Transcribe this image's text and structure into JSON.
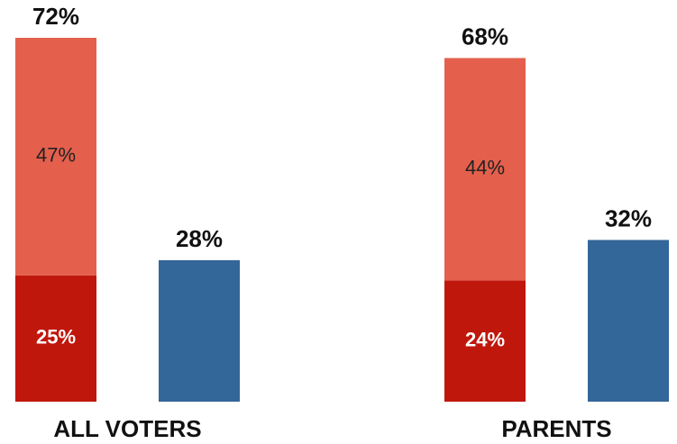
{
  "chart_data": {
    "type": "grouped-stacked-bar",
    "categories": [
      "ALL VOTERS",
      "PARENTS"
    ],
    "series": [
      {
        "color": "#c0170c",
        "values": [
          25,
          24
        ],
        "value_labels": [
          "25%",
          "24%"
        ],
        "stack": 0,
        "label_color": "#ffffff",
        "label_bold": true
      },
      {
        "color": "#e4604c",
        "values": [
          47,
          44
        ],
        "value_labels": [
          "47%",
          "44%"
        ],
        "stack": 0,
        "label_color": "#222222",
        "label_bold": false
      },
      {
        "color": "#336699",
        "values": [
          28,
          32
        ],
        "value_labels": [
          "28%",
          "32%"
        ],
        "stack": 1,
        "label_color": "#111111",
        "label_bold": true,
        "label_above": true
      }
    ],
    "totals": {
      "stack": 0,
      "values": [
        72,
        68
      ],
      "value_labels": [
        "72%",
        "68%"
      ]
    },
    "ylim": [
      0,
      72
    ]
  }
}
